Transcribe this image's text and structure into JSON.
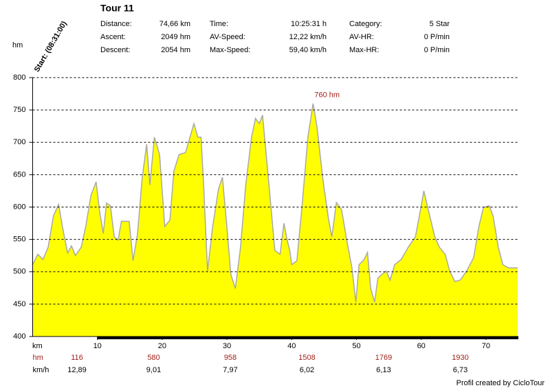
{
  "chart_data": {
    "type": "area",
    "title": "Tour 11",
    "stats": [
      [
        [
          "Distance:",
          "74,66 km"
        ],
        [
          "Time:",
          "10:25:31 h"
        ],
        [
          "Category:",
          "5 Star"
        ]
      ],
      [
        [
          "Ascent:",
          "2049 hm"
        ],
        [
          "AV-Speed:",
          "12,22 km/h"
        ],
        [
          "AV-HR:",
          "0 P/min"
        ]
      ],
      [
        [
          "Descent:",
          "2054 hm"
        ],
        [
          "Max-Speed:",
          "59,40 km/h"
        ],
        [
          "Max-HR:",
          "0 P/min"
        ]
      ]
    ],
    "start_label": "Start: (08:31:00)",
    "y_label": "hm",
    "x_label": "km",
    "peak_label": "760 hm",
    "summary_rows": [
      {
        "label": "hm",
        "values": [
          "116",
          "580",
          "958",
          "1508",
          "1769",
          "1930"
        ]
      },
      {
        "label": "km/h",
        "values": [
          "12,89",
          "9,01",
          "7,97",
          "6,02",
          "6,13",
          "6,73"
        ]
      }
    ],
    "footer": "Profil created by CicloTour",
    "color": "#ffff00",
    "line_color": "#a8a8a8",
    "grid": true,
    "xlim": [
      0,
      75
    ],
    "xticks": [
      10,
      20,
      30,
      40,
      50,
      60,
      70
    ],
    "ylim": [
      400,
      800
    ],
    "yticks": [
      400,
      450,
      500,
      550,
      600,
      650,
      700,
      750,
      800
    ],
    "x": [
      0,
      0.8,
      1.6,
      2.4,
      3.2,
      4.0,
      4.7,
      5.4,
      6.0,
      6.6,
      7.5,
      8.2,
      9.0,
      9.8,
      10.3,
      10.9,
      11.4,
      12.0,
      12.6,
      13.2,
      13.7,
      14.9,
      15.5,
      16.2,
      16.9,
      17.6,
      18.1,
      18.8,
      19.6,
      20.4,
      21.2,
      21.8,
      22.6,
      23.6,
      24.9,
      25.5,
      26.0,
      26.4,
      27.0,
      27.8,
      28.7,
      29.3,
      29.9,
      30.6,
      31.3,
      32.1,
      32.9,
      33.8,
      34.4,
      35.0,
      35.5,
      36.3,
      37.4,
      38.2,
      38.8,
      39.3,
      39.7,
      40.0,
      40.8,
      41.6,
      42.5,
      43.3,
      43.9,
      44.8,
      45.7,
      46.2,
      46.9,
      47.7,
      48.5,
      49.3,
      49.9,
      50.4,
      51.2,
      51.7,
      52.2,
      52.8,
      53.3,
      53.9,
      54.6,
      55.2,
      55.9,
      56.9,
      58.0,
      59.1,
      59.8,
      60.4,
      61.2,
      62.1,
      62.8,
      63.7,
      64.4,
      65.2,
      66.0,
      67.0,
      68.1,
      68.9,
      69.6,
      70.5,
      71.1,
      71.9,
      72.6,
      73.5,
      74.9
    ],
    "values": [
      511,
      527,
      519,
      538,
      586,
      604,
      564,
      529,
      540,
      525,
      538,
      570,
      618,
      639,
      596,
      559,
      606,
      602,
      554,
      549,
      578,
      578,
      517,
      559,
      644,
      697,
      634,
      708,
      681,
      570,
      580,
      655,
      681,
      684,
      729,
      708,
      708,
      634,
      501,
      570,
      628,
      646,
      580,
      496,
      474,
      538,
      634,
      708,
      737,
      729,
      742,
      655,
      533,
      527,
      575,
      549,
      533,
      511,
      517,
      602,
      708,
      760,
      724,
      644,
      580,
      554,
      607,
      596,
      549,
      506,
      453,
      511,
      519,
      530,
      474,
      453,
      490,
      496,
      501,
      487,
      511,
      519,
      538,
      554,
      591,
      625,
      591,
      554,
      538,
      527,
      501,
      485,
      487,
      501,
      522,
      570,
      599,
      602,
      586,
      538,
      511,
      506,
      506
    ]
  }
}
